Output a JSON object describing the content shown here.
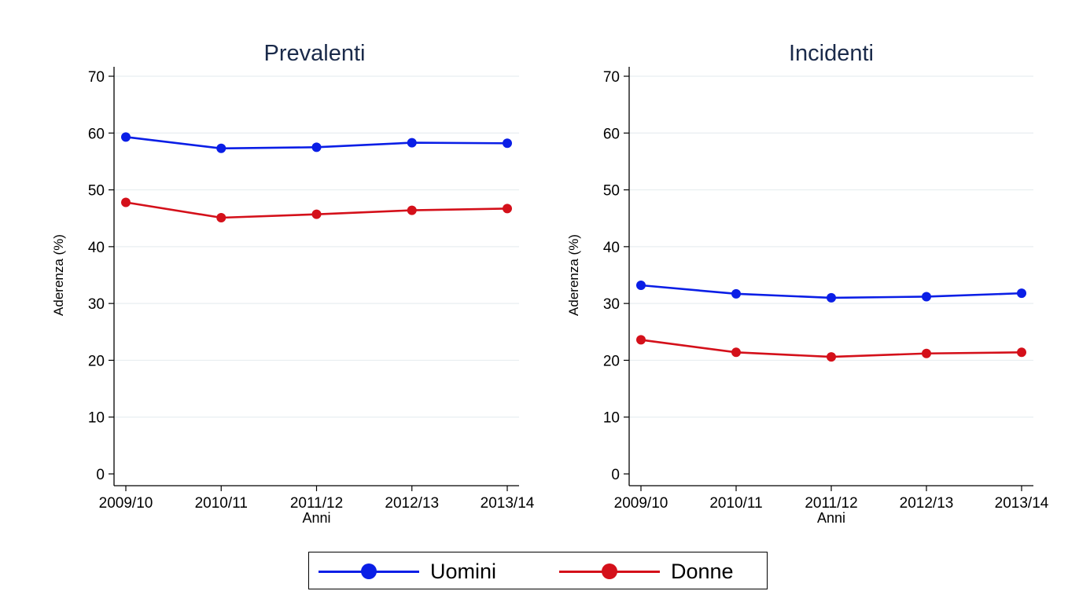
{
  "chart_data": [
    {
      "type": "line",
      "title": "Prevalenti",
      "xlabel": "Anni",
      "ylabel": "Aderenza (%)",
      "ylim": [
        0,
        70
      ],
      "yticks": [
        "0",
        "10",
        "20",
        "30",
        "40",
        "50",
        "60",
        "70"
      ],
      "grid": true,
      "categories": [
        "2009/10",
        "2010/11",
        "2011/12",
        "2012/13",
        "2013/14"
      ],
      "series": [
        {
          "name": "Uomini",
          "color": "#0a1ee6",
          "values": [
            59.3,
            57.3,
            57.5,
            58.3,
            58.2
          ]
        },
        {
          "name": "Donne",
          "color": "#d4101a",
          "values": [
            47.8,
            45.1,
            45.7,
            46.4,
            46.7
          ]
        }
      ]
    },
    {
      "type": "line",
      "title": "Incidenti",
      "xlabel": "Anni",
      "ylabel": "Aderenza (%)",
      "ylim": [
        0,
        70
      ],
      "yticks": [
        "0",
        "10",
        "20",
        "30",
        "40",
        "50",
        "60",
        "70"
      ],
      "grid": true,
      "categories": [
        "2009/10",
        "2010/11",
        "2011/12",
        "2012/13",
        "2013/14"
      ],
      "series": [
        {
          "name": "Uomini",
          "color": "#0a1ee6",
          "values": [
            33.2,
            31.7,
            31.0,
            31.2,
            31.8
          ]
        },
        {
          "name": "Donne",
          "color": "#d4101a",
          "values": [
            23.6,
            21.4,
            20.6,
            21.2,
            21.4
          ]
        }
      ]
    }
  ],
  "legend": {
    "placement": "bottom-center",
    "items": [
      {
        "label": "Uomini",
        "color": "#0a1ee6"
      },
      {
        "label": "Donne",
        "color": "#d4101a"
      }
    ]
  }
}
